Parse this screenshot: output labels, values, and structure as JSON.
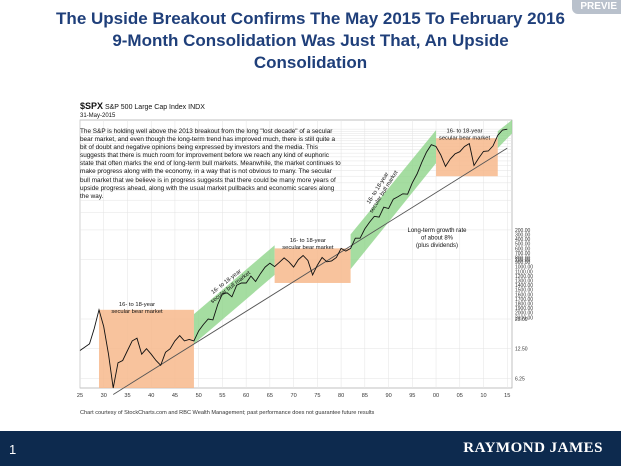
{
  "preview_tag": "PREVIE",
  "title_lines": [
    "The Upside Breakout Confirms The May 2015 To February 2016",
    "9-Month Consolidation Was Just That, An Upside",
    "Consolidation"
  ],
  "chart_header": {
    "ticker": "$SPX",
    "index_name": "S&P 500 Large Cap Index",
    "exchange": "INDX",
    "date": "31-May-2015"
  },
  "paragraph": "The S&P is holding well above the 2013 breakout from the long \"lost decade\" of a secular bear market, and even though the long-term trend has improved much, there is still quite a bit of doubt and negative opinions being expressed by investors and the media. This suggests that there is much room for improvement before we reach any kind of euphoric state that often marks the end of long-term bull markets. Meanwhile, the market continues to make progress along with the economy, in a way that is not obvious to many. The secular bull market that we believe is in progress suggests that there could be many more years of upside progress ahead, along with the usual market pullbacks and economic scares along the way.",
  "credit": "Chart courtesy of StockCharts.com and RBC Wealth Management; past performance does not guarantee future results",
  "footer": {
    "slide_number": "1",
    "brand": "RAYMOND JAMES"
  },
  "colors": {
    "bear": "#f7b98c",
    "bull": "#8fd48a",
    "price": "#111111",
    "trend": "#555555",
    "footer": "#0d2a4e",
    "title": "#1f3f7a"
  },
  "chart_data": {
    "type": "line",
    "title": "S&P 500 Large Cap Index",
    "scale": "log",
    "x_ticks": [
      "25",
      "30",
      "35",
      "40",
      "45",
      "50",
      "55",
      "60",
      "65",
      "70",
      "75",
      "80",
      "85",
      "90",
      "95",
      "00",
      "05",
      "10",
      "15"
    ],
    "x_tick_years": [
      1925,
      1930,
      1935,
      1940,
      1945,
      1950,
      1955,
      1960,
      1965,
      1970,
      1975,
      1980,
      1985,
      1990,
      1995,
      2000,
      2005,
      2010,
      2015
    ],
    "y_ticks": [
      "6.25",
      "12.50",
      "25.00",
      "100.00",
      "200.00",
      "300.00",
      "400.00",
      "500.00",
      "600.00",
      "700.00",
      "800.00",
      "900.00",
      "1000.00",
      "1100.00",
      "1200.00",
      "1300.00",
      "1400.00",
      "1500.00",
      "1600.00",
      "1700.00",
      "1800.00",
      "1900.00",
      "2000.00",
      "2100.00"
    ],
    "y_tick_values": [
      6.25,
      12.5,
      25,
      100,
      200,
      300,
      400,
      500,
      600,
      700,
      800,
      900,
      1000,
      1100,
      1200,
      1300,
      1400,
      1500,
      1600,
      1700,
      1800,
      1900,
      2000,
      2100
    ],
    "x_range": [
      1925,
      2016
    ],
    "y_range": [
      5,
      2600
    ],
    "series": [
      {
        "name": "S&P 500",
        "x": [
          1925,
          1927,
          1928,
          1929,
          1930,
          1931,
          1932,
          1933,
          1934,
          1935,
          1936,
          1937,
          1938,
          1939,
          1940,
          1941,
          1942,
          1943,
          1944,
          1945,
          1946,
          1947,
          1948,
          1949,
          1950,
          1951,
          1952,
          1953,
          1954,
          1955,
          1956,
          1957,
          1958,
          1959,
          1960,
          1961,
          1962,
          1963,
          1964,
          1965,
          1966,
          1967,
          1968,
          1969,
          1970,
          1971,
          1972,
          1973,
          1974,
          1975,
          1976,
          1977,
          1978,
          1979,
          1980,
          1981,
          1982,
          1983,
          1984,
          1985,
          1986,
          1987,
          1988,
          1989,
          1990,
          1991,
          1992,
          1993,
          1994,
          1995,
          1996,
          1997,
          1998,
          1999,
          2000,
          2001,
          2002,
          2003,
          2004,
          2005,
          2006,
          2007,
          2008,
          2009,
          2010,
          2011,
          2012,
          2013,
          2014,
          2015
        ],
        "values": [
          12,
          14,
          20,
          31,
          21,
          11,
          5,
          9,
          9.5,
          12,
          15,
          16,
          11,
          12.5,
          11,
          9.5,
          8.5,
          11.5,
          12.5,
          15,
          17,
          15,
          15.5,
          15,
          19,
          22,
          25,
          24.5,
          35,
          45,
          46,
          42,
          55,
          58,
          58,
          68,
          60,
          72,
          84,
          92,
          85,
          94,
          104,
          95,
          84,
          100,
          110,
          98,
          70,
          88,
          105,
          95,
          97,
          105,
          130,
          122,
          130,
          165,
          165,
          205,
          240,
          275,
          270,
          340,
          330,
          410,
          435,
          465,
          460,
          600,
          740,
          970,
          1230,
          1460,
          1400,
          1150,
          880,
          1050,
          1180,
          1240,
          1400,
          1500,
          900,
          1070,
          1250,
          1260,
          1420,
          1820,
          2060,
          2100
        ]
      }
    ],
    "shaded_regions": [
      {
        "label": "16- to 18-year secular bear market",
        "kind": "bear",
        "x": [
          1929,
          1949
        ],
        "y": [
          4.5,
          31
        ]
      },
      {
        "label": "16- to 18-year secular bull market",
        "kind": "bull",
        "x": [
          1949,
          1966
        ],
        "y_start": [
          14,
          28
        ],
        "y_end": [
          70,
          140
        ]
      },
      {
        "label": "16- to 18-year secular bear market",
        "kind": "bear",
        "x": [
          1966,
          1982
        ],
        "y": [
          58,
          130
        ]
      },
      {
        "label": "16- to 18-year secular bull market",
        "kind": "bull",
        "x": [
          1982,
          2000
        ],
        "y_start": [
          80,
          180
        ],
        "y_end": [
          950,
          2050
        ]
      },
      {
        "label": "16- to 18-year secular bear market",
        "kind": "bear",
        "x": [
          2000,
          2013
        ],
        "y": [
          700,
          1700
        ]
      },
      {
        "label": "",
        "kind": "bull",
        "x": [
          2013,
          2016
        ],
        "y_start": [
          1350,
          2000
        ],
        "y_end": [
          1900,
          2900
        ]
      }
    ],
    "trend_line": {
      "x": [
        1932,
        2015
      ],
      "y": [
        4.3,
        1350
      ]
    },
    "annotations": [
      {
        "text": "Long-term growth rate of about 8% (plus dividends)"
      },
      {
        "text": "16- to 18-year secular bear market"
      },
      {
        "text": "16- to 18-year secular bull market"
      }
    ]
  }
}
